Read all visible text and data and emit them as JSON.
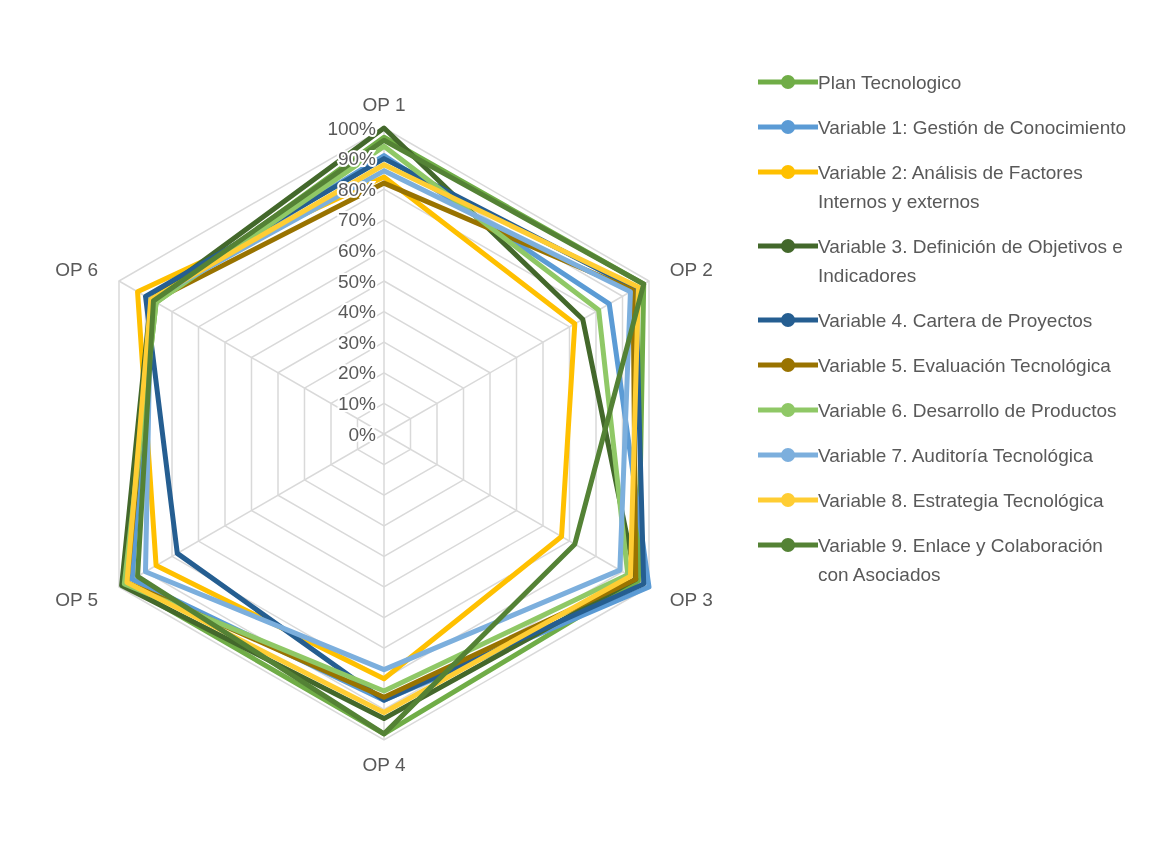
{
  "chart_data": {
    "type": "radar",
    "categories": [
      "OP 1",
      "OP 2",
      "OP 3",
      "OP 4",
      "OP 5",
      "OP 6"
    ],
    "ylim": [
      0,
      100
    ],
    "yticks": [
      {
        "value": 0,
        "label": "0%"
      },
      {
        "value": 10,
        "label": "10%"
      },
      {
        "value": 20,
        "label": "20%"
      },
      {
        "value": 30,
        "label": "30%"
      },
      {
        "value": 40,
        "label": "40%"
      },
      {
        "value": 50,
        "label": "50%"
      },
      {
        "value": 60,
        "label": "60%"
      },
      {
        "value": 70,
        "label": "70%"
      },
      {
        "value": 80,
        "label": "80%"
      },
      {
        "value": 90,
        "label": "90%"
      },
      {
        "value": 100,
        "label": "100%"
      }
    ],
    "grid": true,
    "legend": "right",
    "marker": "none",
    "line_style": "solid",
    "series": [
      {
        "name": "Plan Tecnologico",
        "color": "#70ad47",
        "values": [
          97,
          98,
          96,
          98,
          98,
          86
        ]
      },
      {
        "name": "Variable 1: Gestión de Conocimiento",
        "color": "#5b9bd5",
        "values": [
          91,
          85,
          100,
          87,
          95,
          88
        ]
      },
      {
        "name": "Variable 2: Análisis de Factores Internos y externos",
        "color": "#ffc000",
        "values": [
          84,
          72,
          67,
          80,
          86,
          93
        ]
      },
      {
        "name": "Variable 3. Definición de Objetivos e Indicadores",
        "color": "#43682b",
        "values": [
          100,
          75,
          95,
          93,
          99,
          88
        ]
      },
      {
        "name": "Variable 4. Cartera de Proyectos",
        "color": "#255e91",
        "values": [
          90,
          95,
          98,
          87,
          78,
          90
        ]
      },
      {
        "name": "Variable 5. Evaluación Tecnológica",
        "color": "#997300",
        "values": [
          82,
          94,
          95,
          86,
          97,
          87
        ]
      },
      {
        "name": "Variable 6. Desarrollo de Productos",
        "color": "#8fc866",
        "values": [
          94,
          81,
          92,
          84,
          98,
          86
        ]
      },
      {
        "name": "Variable 7. Auditoría Tecnológica",
        "color": "#7cafdd",
        "values": [
          86,
          93,
          89,
          77,
          90,
          88
        ]
      },
      {
        "name": "Variable 8. Estrategia Tecnológica",
        "color": "#ffcd33",
        "values": [
          88,
          96,
          93,
          91,
          97,
          88
        ]
      },
      {
        "name": "Variable 9. Enlace y Colaboración con Asociados",
        "color": "#548235",
        "values": [
          96,
          98,
          72,
          98,
          93,
          87
        ]
      }
    ]
  }
}
